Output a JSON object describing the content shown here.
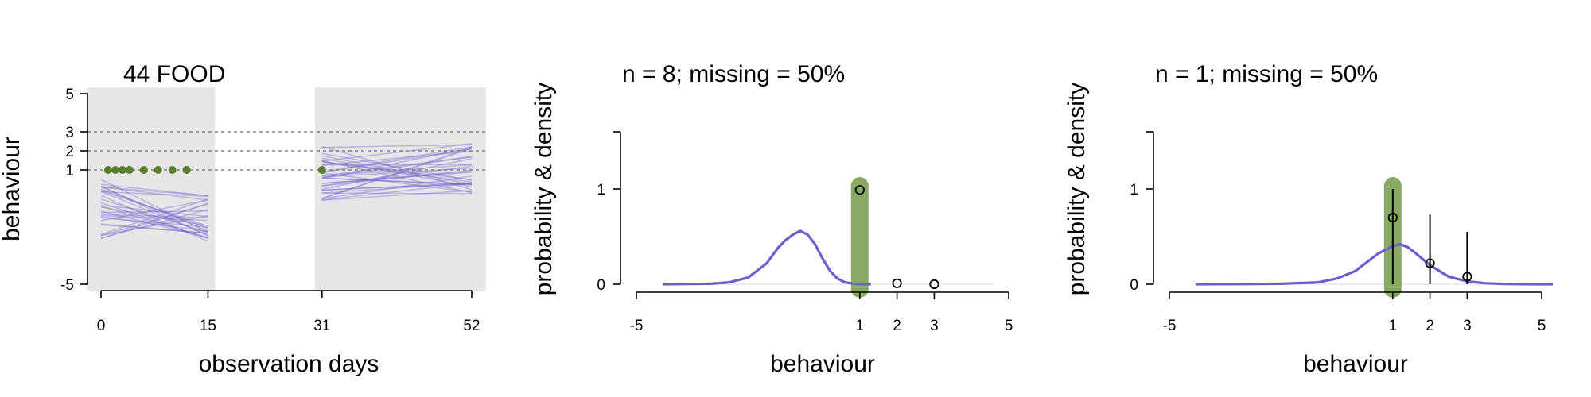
{
  "chart_data": [
    {
      "type": "line",
      "title": "44 FOOD",
      "xlabel": "observation days",
      "ylabel": "behaviour",
      "xlim": [
        -4,
        54.5
      ],
      "ylim": [
        -5.4,
        5
      ],
      "xticks": [
        0,
        15,
        31,
        52
      ],
      "yticks": [
        -5,
        1,
        2,
        3,
        5
      ],
      "reference_lines_y": [
        1,
        2,
        3
      ],
      "shaded_periods": [
        [
          -2,
          16
        ],
        [
          30,
          54
        ]
      ],
      "observed": {
        "x": [
          1,
          2,
          3,
          4,
          6,
          8,
          10,
          12,
          31
        ],
        "y": [
          1,
          1,
          1,
          1,
          1,
          1,
          1,
          1,
          1
        ]
      },
      "series": [
        {
          "period": [
            0,
            15
          ],
          "start_range": [
            -2.6,
            0.5
          ],
          "end_range": [
            -2.8,
            -0.2
          ],
          "count": 30
        },
        {
          "period": [
            31,
            52
          ],
          "start_range": [
            -0.6,
            2.3
          ],
          "end_range": [
            -0.3,
            2.4
          ],
          "count": 35
        }
      ],
      "colors": {
        "observed": "#5a7f2b",
        "samples": "#6b5fcf",
        "shade": "#e6e6e6",
        "reference": "#808080"
      }
    },
    {
      "type": "line",
      "title": "n = 8; missing = 50%",
      "xlabel": "behaviour",
      "ylabel": "probability & density",
      "xlim": [
        -5,
        5
      ],
      "ylim": [
        0,
        1.6
      ],
      "xticks": [
        -5,
        1,
        2,
        3,
        5
      ],
      "yticks": [
        0,
        1
      ],
      "highlight_x": 1,
      "density": {
        "x": [
          -4.3,
          -3.0,
          -2.5,
          -2.0,
          -1.5,
          -1.2,
          -1.0,
          -0.8,
          -0.6,
          -0.4,
          -0.2,
          0.0,
          0.2,
          0.4,
          0.6,
          0.8,
          1.0,
          1.3
        ],
        "y": [
          0.0,
          0.005,
          0.02,
          0.07,
          0.22,
          0.38,
          0.46,
          0.52,
          0.56,
          0.52,
          0.42,
          0.27,
          0.14,
          0.06,
          0.02,
          0.008,
          0.003,
          0.0
        ]
      },
      "points": [
        {
          "x": 1,
          "y": 0.99
        },
        {
          "x": 2,
          "y": 0.01
        },
        {
          "x": 3,
          "y": 0.0
        }
      ],
      "colors": {
        "density": "#6b5fcf",
        "highlight": "#8aa866",
        "points": "#000000"
      }
    },
    {
      "type": "line",
      "title": "n = 1; missing = 50%",
      "xlabel": "behaviour",
      "ylabel": "probability & density",
      "xlim": [
        -5,
        5
      ],
      "ylim": [
        0,
        1.6
      ],
      "xticks": [
        -5,
        1,
        2,
        3,
        5
      ],
      "yticks": [
        0,
        1
      ],
      "highlight_x": 1,
      "density": {
        "x": [
          -4.3,
          -3.0,
          -2.0,
          -1.0,
          -0.5,
          0.0,
          0.3,
          0.6,
          0.8,
          1.0,
          1.2,
          1.4,
          1.6,
          2.0,
          2.5,
          3.0,
          3.5,
          4.0,
          4.5,
          5.3
        ],
        "y": [
          0.0,
          0.002,
          0.005,
          0.02,
          0.06,
          0.14,
          0.23,
          0.32,
          0.36,
          0.4,
          0.42,
          0.39,
          0.33,
          0.2,
          0.08,
          0.03,
          0.01,
          0.003,
          0.001,
          0.0
        ]
      },
      "points": [
        {
          "x": 1,
          "y": 0.7,
          "lo": 0.0,
          "hi": 1.0
        },
        {
          "x": 2,
          "y": 0.22,
          "lo": 0.0,
          "hi": 0.73
        },
        {
          "x": 3,
          "y": 0.08,
          "lo": 0.0,
          "hi": 0.55
        }
      ],
      "colors": {
        "density": "#6b5fcf",
        "highlight": "#8aa866",
        "points": "#000000"
      }
    }
  ]
}
